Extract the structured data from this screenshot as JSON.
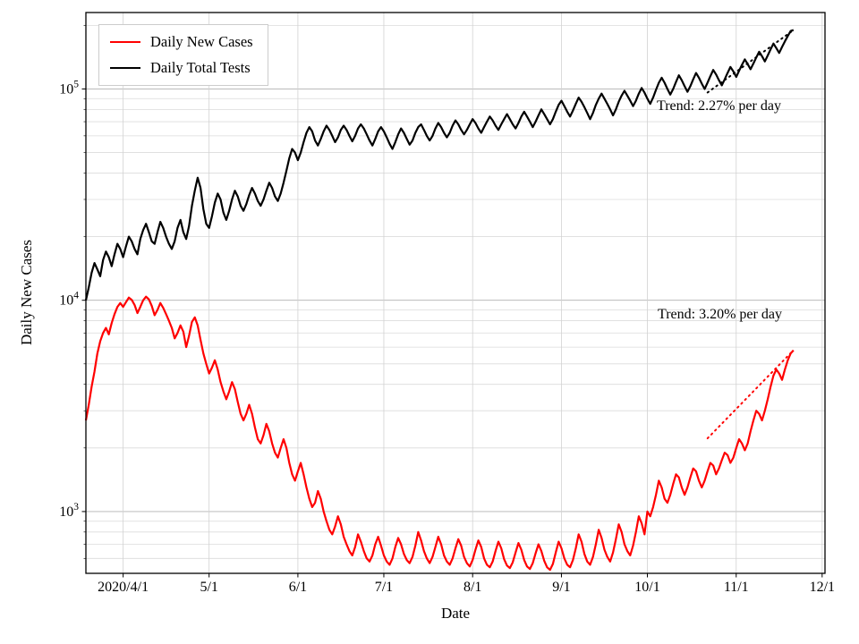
{
  "figure": {
    "xlabel": "Date",
    "ylabel": "Daily New Cases",
    "background_color": "#ffffff",
    "legend": [
      {
        "label": "Daily New Cases",
        "color": "#ff0000"
      },
      {
        "label": "Daily Total Tests",
        "color": "#000000"
      }
    ],
    "annotations": [
      {
        "text": "Trend: 2.27% per day",
        "color": "#000000"
      },
      {
        "text": "Trend: 3.20% per day",
        "color": "#000000"
      }
    ]
  },
  "chart_data": {
    "type": "line",
    "yscale": "log",
    "grid": true,
    "legend_position": "upper left",
    "x_start_date": "2020/3/19",
    "xlim_days": [
      0,
      258
    ],
    "ylim": [
      510,
      230000
    ],
    "x_ticks": [
      {
        "day": 13,
        "label": "2020/4/1"
      },
      {
        "day": 43,
        "label": "5/1"
      },
      {
        "day": 74,
        "label": "6/1"
      },
      {
        "day": 104,
        "label": "7/1"
      },
      {
        "day": 135,
        "label": "8/1"
      },
      {
        "day": 166,
        "label": "9/1"
      },
      {
        "day": 196,
        "label": "10/1"
      },
      {
        "day": 227,
        "label": "11/1"
      },
      {
        "day": 257,
        "label": "12/1"
      }
    ],
    "y_ticks": [
      {
        "value": 1000,
        "mantissa": "10",
        "exponent": "3"
      },
      {
        "value": 10000,
        "mantissa": "10",
        "exponent": "4"
      },
      {
        "value": 100000,
        "mantissa": "10",
        "exponent": "5"
      }
    ],
    "series": [
      {
        "name": "Daily New Cases",
        "color": "#ff0000",
        "values": [
          2700,
          3200,
          3900,
          4600,
          5600,
          6400,
          7000,
          7400,
          6900,
          7800,
          8600,
          9300,
          9700,
          9300,
          9800,
          10300,
          10050,
          9500,
          8700,
          9300,
          10000,
          10400,
          10100,
          9400,
          8500,
          9000,
          9700,
          9200,
          8600,
          8000,
          7400,
          6600,
          7000,
          7600,
          7100,
          6000,
          6800,
          7900,
          8300,
          7600,
          6500,
          5600,
          5000,
          4500,
          4800,
          5200,
          4700,
          4100,
          3700,
          3400,
          3700,
          4100,
          3800,
          3300,
          2900,
          2700,
          2900,
          3200,
          2900,
          2500,
          2200,
          2100,
          2300,
          2600,
          2400,
          2100,
          1900,
          1800,
          2000,
          2200,
          2000,
          1700,
          1500,
          1400,
          1550,
          1700,
          1500,
          1300,
          1150,
          1050,
          1100,
          1250,
          1150,
          1000,
          900,
          820,
          780,
          850,
          950,
          870,
          760,
          700,
          650,
          620,
          680,
          780,
          720,
          650,
          600,
          580,
          620,
          700,
          760,
          690,
          620,
          580,
          560,
          600,
          680,
          750,
          700,
          630,
          590,
          570,
          610,
          690,
          800,
          730,
          650,
          600,
          570,
          610,
          680,
          760,
          700,
          620,
          580,
          560,
          600,
          670,
          740,
          690,
          610,
          570,
          550,
          590,
          660,
          730,
          680,
          600,
          560,
          545,
          580,
          650,
          720,
          670,
          595,
          555,
          540,
          575,
          640,
          710,
          660,
          590,
          550,
          535,
          570,
          635,
          700,
          650,
          585,
          545,
          530,
          565,
          640,
          720,
          670,
          600,
          560,
          545,
          590,
          670,
          780,
          720,
          630,
          580,
          560,
          610,
          700,
          820,
          750,
          660,
          610,
          580,
          640,
          740,
          870,
          800,
          700,
          650,
          620,
          690,
          800,
          950,
          880,
          780,
          1000,
          950,
          1050,
          1200,
          1400,
          1300,
          1150,
          1100,
          1200,
          1350,
          1500,
          1450,
          1300,
          1200,
          1300,
          1450,
          1600,
          1550,
          1400,
          1300,
          1400,
          1550,
          1700,
          1650,
          1500,
          1600,
          1750,
          1900,
          1850,
          1700,
          1800,
          2000,
          2200,
          2100,
          1950,
          2100,
          2400,
          2700,
          3000,
          2900,
          2700,
          3000,
          3400,
          3900,
          4400,
          4700,
          4500,
          4200,
          4700,
          5200,
          5600,
          5800
        ]
      },
      {
        "name": "Daily Total Tests",
        "color": "#000000",
        "values": [
          10000,
          11500,
          13500,
          15000,
          14000,
          13000,
          15500,
          17000,
          16000,
          14500,
          16500,
          18500,
          17500,
          16000,
          18000,
          20000,
          19000,
          17500,
          16500,
          19500,
          21500,
          23000,
          21000,
          19000,
          18500,
          21000,
          23500,
          22000,
          20000,
          18500,
          17500,
          19000,
          22000,
          24000,
          21000,
          19500,
          22500,
          28000,
          33000,
          38000,
          34000,
          27000,
          23000,
          22000,
          25000,
          29000,
          32000,
          30000,
          26000,
          24000,
          26500,
          30000,
          33000,
          31000,
          28000,
          26500,
          28500,
          31500,
          34000,
          32000,
          29500,
          28000,
          30000,
          33000,
          36000,
          34000,
          31000,
          29500,
          32000,
          36000,
          41000,
          47000,
          52000,
          50000,
          46000,
          50000,
          56000,
          62000,
          66000,
          63000,
          57000,
          54000,
          58000,
          63000,
          67000,
          64000,
          60000,
          56000,
          59000,
          64000,
          67000,
          64000,
          60000,
          56500,
          60000,
          65000,
          68000,
          65000,
          61000,
          57000,
          54000,
          58000,
          63000,
          66000,
          63000,
          59000,
          55000,
          52000,
          56000,
          61000,
          65000,
          62000,
          58000,
          54500,
          57000,
          62000,
          66000,
          68000,
          64000,
          60000,
          57000,
          60000,
          65000,
          69000,
          66000,
          62000,
          59000,
          62000,
          67000,
          71000,
          68000,
          64000,
          61000,
          64000,
          68000,
          72000,
          69000,
          65000,
          62000,
          66000,
          70000,
          74000,
          71000,
          67000,
          64000,
          68000,
          72000,
          76000,
          72000,
          68000,
          65000,
          69000,
          74000,
          78000,
          74000,
          70000,
          66000,
          70000,
          75000,
          80000,
          76000,
          72000,
          68000,
          72000,
          78000,
          84000,
          88000,
          83000,
          78000,
          74000,
          79000,
          85000,
          91000,
          87000,
          82000,
          77000,
          72000,
          77000,
          84000,
          90000,
          95000,
          90000,
          85000,
          80000,
          75000,
          80000,
          87000,
          93000,
          98000,
          93000,
          88000,
          83000,
          88000,
          95000,
          101000,
          96000,
          90000,
          85000,
          91000,
          99000,
          107000,
          113000,
          107000,
          100000,
          94000,
          100000,
          108000,
          116000,
          110000,
          103000,
          97000,
          103000,
          111000,
          119000,
          113000,
          106000,
          100000,
          107000,
          115000,
          123000,
          117000,
          110000,
          104000,
          111000,
          119000,
          127000,
          121000,
          114000,
          122000,
          130000,
          138000,
          131000,
          124000,
          132000,
          141000,
          150000,
          143000,
          135000,
          144000,
          154000,
          164000,
          156000,
          148000,
          158000,
          168000,
          178000,
          188000,
          190000
        ]
      }
    ],
    "trends": [
      {
        "series": 1,
        "rate_percent_per_day": 2.27,
        "window_days": 30,
        "label": "Trend: 2.27% per day"
      },
      {
        "series": 0,
        "rate_percent_per_day": 3.2,
        "window_days": 30,
        "label": "Trend: 3.20% per day"
      }
    ]
  }
}
